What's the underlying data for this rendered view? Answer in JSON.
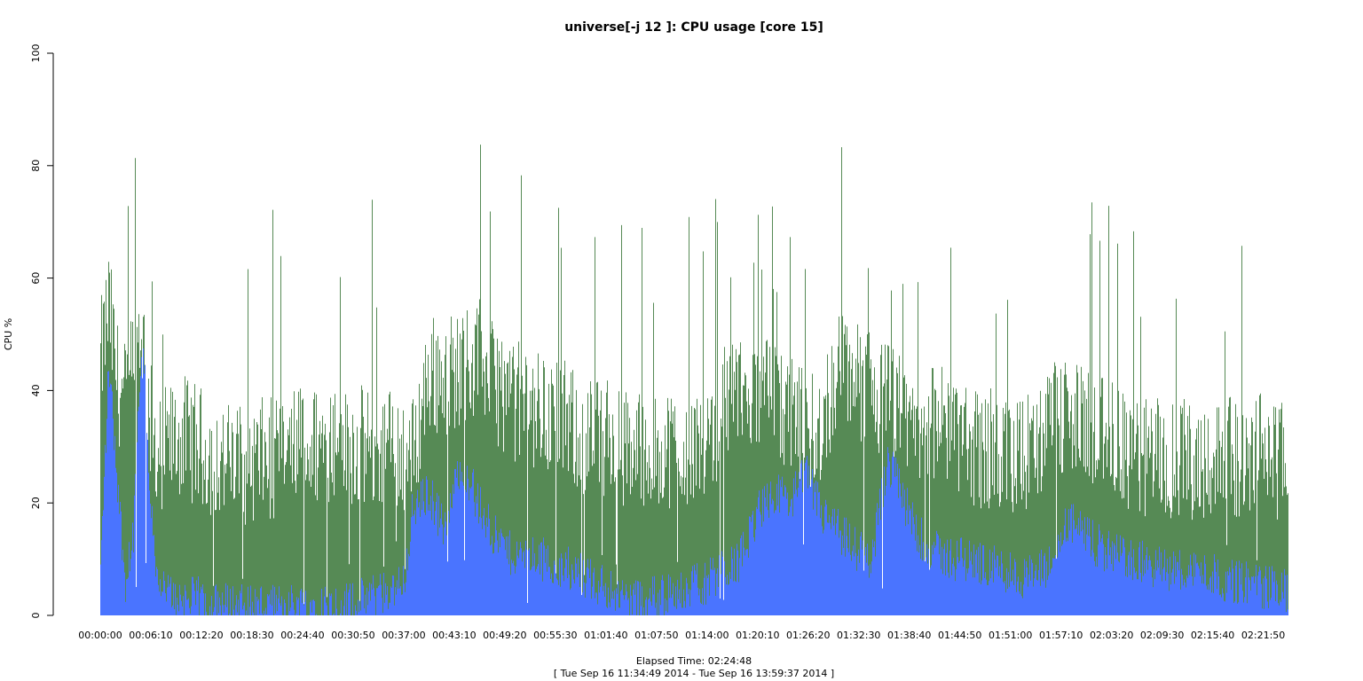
{
  "chart_data": {
    "type": "area",
    "title": "universe[-j 12  ]: CPU usage [core 15]",
    "ylabel": "CPU %",
    "xlabel": "Elapsed Time: 02:24:48",
    "subtitle": "[ Tue Sep 16 11:34:49 2014 - Tue Sep 16 13:59:37 2014 ]",
    "ylim": [
      0,
      100
    ],
    "y_ticks": [
      0,
      20,
      40,
      60,
      80,
      100
    ],
    "x_ticks": [
      "00:00:00",
      "00:06:10",
      "00:12:20",
      "00:18:30",
      "00:24:40",
      "00:30:50",
      "00:37:00",
      "00:43:10",
      "00:49:20",
      "00:55:30",
      "01:01:40",
      "01:07:50",
      "01:14:00",
      "01:20:10",
      "01:26:20",
      "01:32:30",
      "01:38:40",
      "01:44:50",
      "01:51:00",
      "01:57:10",
      "02:03:20",
      "02:09:30",
      "02:15:40",
      "02:21:50"
    ],
    "x_unit": "elapsed minutes",
    "grid": false,
    "legend": "none",
    "colors": {
      "total": "#568a55",
      "base": "#4a74ff"
    },
    "series": [
      {
        "values_x": [
          0,
          1,
          2,
          3,
          4,
          5,
          6,
          7,
          8,
          10,
          12,
          14,
          16,
          18,
          20,
          22,
          24,
          26,
          28,
          30,
          32,
          34,
          36,
          38,
          40,
          42,
          44,
          46,
          48,
          50,
          52,
          54,
          56,
          58,
          60,
          62,
          64,
          66,
          68,
          70,
          72,
          74,
          76,
          78,
          80,
          82,
          84,
          86,
          88,
          90,
          92,
          94,
          96,
          98,
          100,
          102,
          104,
          106,
          108,
          110,
          112,
          114,
          116,
          118,
          120,
          122,
          124,
          126,
          128,
          130,
          132,
          134,
          136,
          138,
          140,
          142,
          144,
          144.8
        ],
        "values": [
          45,
          55,
          42,
          38,
          45,
          52,
          35,
          28,
          30,
          32,
          30,
          28,
          27,
          27,
          28,
          28,
          30,
          30,
          31,
          30,
          30,
          30,
          30,
          28,
          43,
          43,
          44,
          46,
          42,
          38,
          38,
          36,
          35,
          33,
          32,
          31,
          30,
          30,
          30,
          30,
          30,
          32,
          37,
          40,
          40,
          38,
          35,
          33,
          34,
          45,
          42,
          40,
          38,
          35,
          35,
          33,
          34,
          30,
          30,
          28,
          28,
          30,
          34,
          35,
          34,
          32,
          30,
          28,
          28,
          28,
          28,
          28,
          28,
          28,
          28,
          30,
          27,
          27
        ]
      },
      {
        "values_x": [
          0,
          1,
          2,
          3,
          4,
          5,
          5.5,
          6,
          7,
          8,
          10,
          12,
          14,
          16,
          18,
          20,
          22,
          24,
          26,
          28,
          30,
          32,
          34,
          36,
          37,
          38,
          40,
          42,
          44,
          46,
          48,
          50,
          52,
          54,
          56,
          58,
          60,
          62,
          64,
          66,
          68,
          70,
          72,
          74,
          76,
          78,
          80,
          82,
          84,
          86,
          88,
          90,
          92,
          94,
          96,
          98,
          100,
          102,
          104,
          106,
          108,
          110,
          112,
          114,
          116,
          118,
          120,
          122,
          124,
          126,
          128,
          130,
          132,
          134,
          136,
          138,
          140,
          142,
          144,
          144.8
        ],
        "values": [
          8,
          45,
          25,
          6,
          15,
          48,
          40,
          22,
          6,
          4,
          3,
          3,
          2,
          2,
          2,
          2,
          2,
          2,
          2,
          2,
          2,
          3,
          4,
          5,
          6,
          18,
          22,
          15,
          28,
          20,
          14,
          11,
          10,
          10,
          9,
          8,
          6,
          5,
          3,
          3,
          3,
          4,
          5,
          6,
          8,
          10,
          18,
          22,
          20,
          25,
          18,
          15,
          12,
          10,
          28,
          20,
          14,
          11,
          10,
          10,
          9,
          8,
          7,
          7,
          9,
          17,
          14,
          12,
          11,
          10,
          9,
          8,
          8,
          8,
          7,
          6,
          6,
          5,
          5,
          4
        ]
      }
    ]
  }
}
